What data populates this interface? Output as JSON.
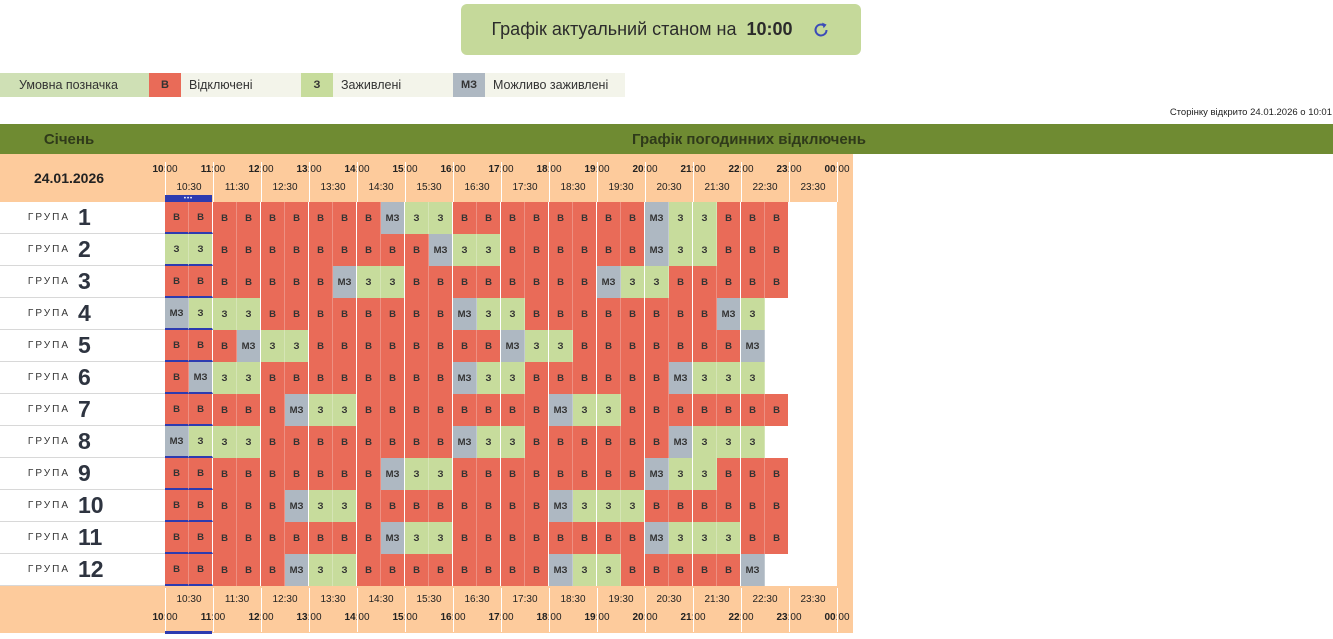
{
  "status": {
    "text": "Графік актуальний станом на",
    "time": "10:00",
    "refresh_icon": "refresh-icon"
  },
  "legend": {
    "title": "Умовна позначка",
    "items": [
      {
        "code": "В",
        "label": "Відключені",
        "color": "#e96b58"
      },
      {
        "code": "З",
        "label": "Заживлені",
        "color": "#c7dc9c"
      },
      {
        "code": "МЗ",
        "label": "Можливо заживлені",
        "color": "#aeb8c2"
      }
    ]
  },
  "opened": "Сторінку відкрито 24.01.2026 о 10:01",
  "header": {
    "month": "Січень",
    "title": "Графік погодинних відключень",
    "date": "24.01.2026"
  },
  "hours": [
    "10",
    "11",
    "12",
    "13",
    "14",
    "15",
    "16",
    "17",
    "18",
    "19",
    "20",
    "21",
    "22",
    "23",
    "00"
  ],
  "hours_suffix": ":00",
  "halves": [
    "10:30",
    "11:30",
    "12:30",
    "13:30",
    "14:30",
    "15:30",
    "16:30",
    "17:30",
    "18:30",
    "19:30",
    "20:30",
    "21:30",
    "22:30",
    "23:30"
  ],
  "current_marker": "•••",
  "group_word": "ГРУПА",
  "codes": {
    "B": "В",
    "Z": "З",
    "M": "МЗ"
  },
  "groups": [
    {
      "n": "1",
      "s": "BBBBBBBBBMZZZBBBBBBBBMZZZBBB"
    },
    {
      "n": "2",
      "s": "ZZBBBBBBBBBMZZZBBBBBBMZZZBBB"
    },
    {
      "n": "3",
      "s": "BBBBBBBMZZZBBBBBBBBMZZZBBBBB"
    },
    {
      "n": "4",
      "s": "MZZZZBBBBBBBBMZZZBBBBBBBBMZZ"
    },
    {
      "n": "5",
      "s": "BBBMZZZBBBBBBBBMZZZBBBBBBBMZ"
    },
    {
      "n": "6",
      "s": "BMZZZBBBBBBBBMZZZBBBBBBMZZZZ"
    },
    {
      "n": "7",
      "s": "BBBBBMZZZBBBBBBBBMZZZBBBBBBB"
    },
    {
      "n": "8",
      "s": "MZZZZBBBBBBBBMZZZBBBBBBMZZZZ"
    },
    {
      "n": "9",
      "s": "BBBBBBBBBMZZZBBBBBBBBMZZZBBB"
    },
    {
      "n": "10",
      "s": "BBBBBMZZZBBBBBBBBMZZZZBBBBBB"
    },
    {
      "n": "11",
      "s": "BBBBBBBBBMZZZBBBBBBBBMZZZZBB"
    },
    {
      "n": "12",
      "s": "BBBBBMZZZBBBBBBBBMZZZBBBBBMZ"
    }
  ]
}
